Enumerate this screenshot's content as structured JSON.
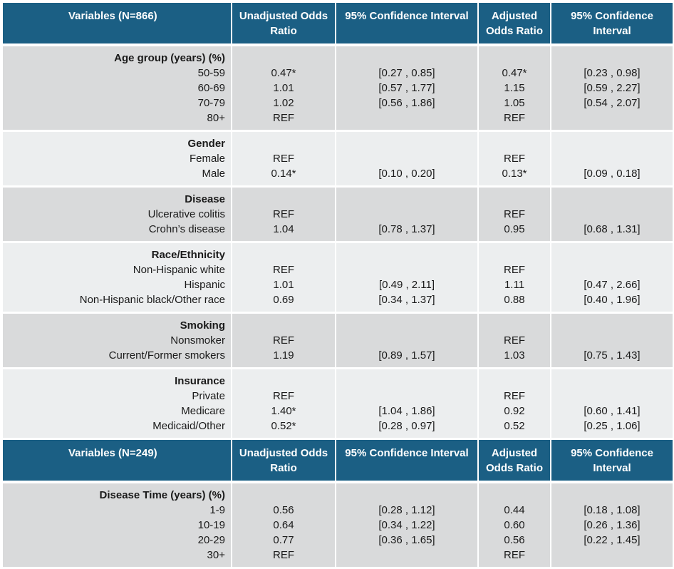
{
  "table1": {
    "headers": [
      "Variables (N=866)",
      "Unadjusted Odds Ratio",
      "95% Confidence Interval",
      "Adjusted Odds Ratio",
      "95% Confidence Interval"
    ],
    "groups": [
      {
        "title": "Age group (years) (%)",
        "shade": "dark",
        "rows": [
          {
            "label": "50-59",
            "unadj": "0.47*",
            "ci1": "[0.27 , 0.85]",
            "adj": "0.47*",
            "ci2": "[0.23 , 0.98]"
          },
          {
            "label": "60-69",
            "unadj": "1.01",
            "ci1": "[0.57 , 1.77]",
            "adj": "1.15",
            "ci2": "[0.59 , 2.27]"
          },
          {
            "label": "70-79",
            "unadj": "1.02",
            "ci1": "[0.56 , 1.86]",
            "adj": "1.05",
            "ci2": "[0.54 , 2.07]"
          },
          {
            "label": "80+",
            "unadj": "REF",
            "ci1": "",
            "adj": "REF",
            "ci2": ""
          }
        ]
      },
      {
        "title": "Gender",
        "shade": "light",
        "rows": [
          {
            "label": "Female",
            "unadj": "REF",
            "ci1": "",
            "adj": "REF",
            "ci2": ""
          },
          {
            "label": "Male",
            "unadj": "0.14*",
            "ci1": "[0.10 , 0.20]",
            "adj": "0.13*",
            "ci2": "[0.09 , 0.18]"
          }
        ]
      },
      {
        "title": "Disease",
        "shade": "dark",
        "rows": [
          {
            "label": "Ulcerative colitis",
            "unadj": "REF",
            "ci1": "",
            "adj": "REF",
            "ci2": ""
          },
          {
            "label": "Crohn’s disease",
            "unadj": "1.04",
            "ci1": "[0.78 , 1.37]",
            "adj": "0.95",
            "ci2": "[0.68 , 1.31]"
          }
        ]
      },
      {
        "title": "Race/Ethnicity",
        "shade": "light",
        "rows": [
          {
            "label": "Non-Hispanic white",
            "unadj": "REF",
            "ci1": "",
            "adj": "REF",
            "ci2": ""
          },
          {
            "label": "Hispanic",
            "unadj": "1.01",
            "ci1": "[0.49 , 2.11]",
            "adj": "1.11",
            "ci2": "[0.47 , 2.66]"
          },
          {
            "label": "Non-Hispanic black/Other race",
            "unadj": "0.69",
            "ci1": "[0.34 , 1.37]",
            "adj": "0.88",
            "ci2": "[0.40 , 1.96]"
          }
        ]
      },
      {
        "title": "Smoking",
        "shade": "dark",
        "rows": [
          {
            "label": "Nonsmoker",
            "unadj": "REF",
            "ci1": "",
            "adj": "REF",
            "ci2": ""
          },
          {
            "label": "Current/Former smokers",
            "unadj": "1.19",
            "ci1": "[0.89 , 1.57]",
            "adj": "1.03",
            "ci2": "[0.75 , 1.43]"
          }
        ]
      },
      {
        "title": "Insurance",
        "shade": "light",
        "rows": [
          {
            "label": "Private",
            "unadj": "REF",
            "ci1": "",
            "adj": "REF",
            "ci2": ""
          },
          {
            "label": "Medicare",
            "unadj": "1.40*",
            "ci1": "[1.04 , 1.86]",
            "adj": "0.92",
            "ci2": "[0.60 , 1.41]"
          },
          {
            "label": "Medicaid/Other",
            "unadj": "0.52*",
            "ci1": "[0.28 , 0.97]",
            "adj": "0.52",
            "ci2": "[0.25 , 1.06]"
          }
        ]
      }
    ]
  },
  "table2": {
    "headers": [
      "Variables (N=249)",
      "Unadjusted Odds Ratio",
      "95% Confidence Interval",
      "Adjusted Odds Ratio",
      "95% Confidence Interval"
    ],
    "groups": [
      {
        "title": "Disease Time (years) (%)",
        "shade": "dark",
        "rows": [
          {
            "label": "1-9",
            "unadj": "0.56",
            "ci1": "[0.28 , 1.12]",
            "adj": "0.44",
            "ci2": "[0.18 , 1.08]"
          },
          {
            "label": "10-19",
            "unadj": "0.64",
            "ci1": "[0.34 , 1.22]",
            "adj": "0.60",
            "ci2": "[0.26 , 1.36]"
          },
          {
            "label": "20-29",
            "unadj": "0.77",
            "ci1": "[0.36 , 1.65]",
            "adj": "0.56",
            "ci2": "[0.22 , 1.45]"
          },
          {
            "label": "30+",
            "unadj": "REF",
            "ci1": "",
            "adj": "REF",
            "ci2": ""
          }
        ]
      }
    ]
  },
  "colors": {
    "header_bg": "#1b5f84",
    "dark_band": "#d9dadb",
    "light_band": "#eceeef"
  }
}
